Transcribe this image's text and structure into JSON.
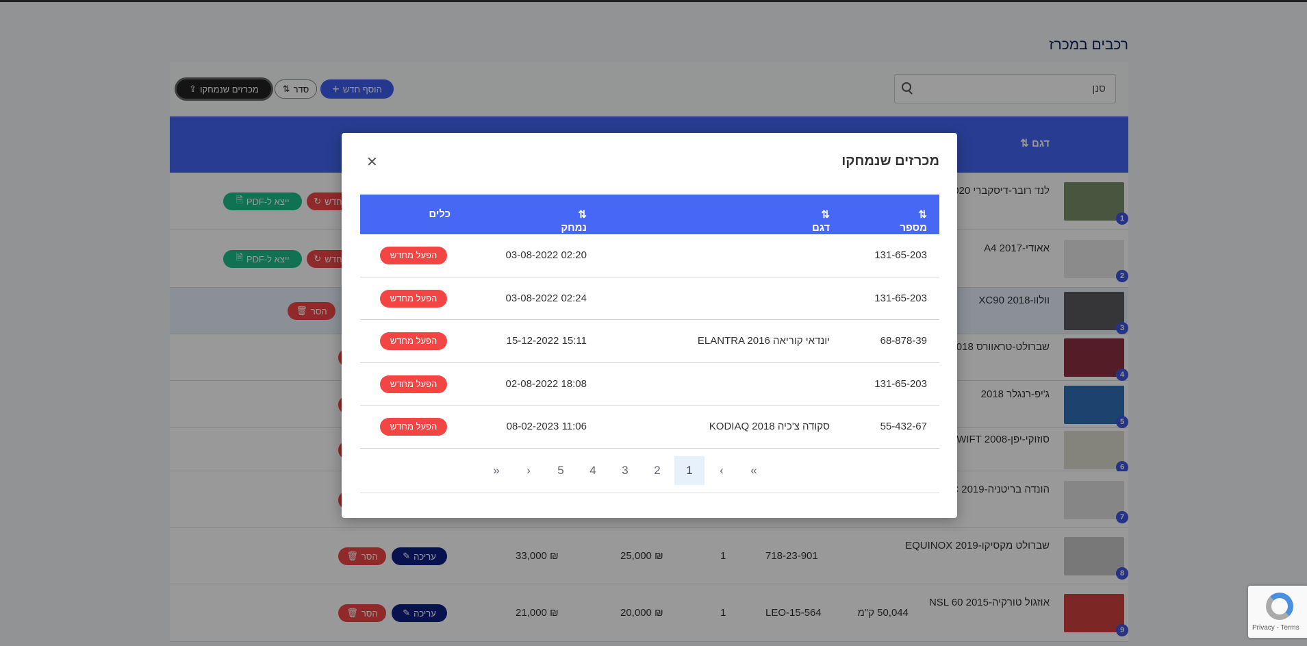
{
  "page": {
    "title": "רכבים במכרז"
  },
  "toolbar": {
    "search_placeholder": "סנן",
    "deleted_label": "מכרזים שנמחקו",
    "sort_label": "סדר",
    "add_label": "הוסף חדש"
  },
  "table": {
    "header_model": "דגם",
    "rows": [
      {
        "num": "1",
        "model": "לנד רובר-דיסקברי 2020",
        "pdf": "ייצא ל-PDF",
        "reset": "הפעל מחדש",
        "thumb": "#7a8f6a"
      },
      {
        "num": "2",
        "model": "אאודי-A4 2017",
        "pdf": "ייצא ל-PDF",
        "reset": "הפעל מחדש",
        "thumb": "#e8e8e8"
      },
      {
        "num": "3",
        "model": "וולוו-XC90 2018",
        "remove": "הסר",
        "thumb": "#5a5a60"
      },
      {
        "num": "4",
        "model": "שברולט-טראוורס 2018",
        "thumb": "#8a3040"
      },
      {
        "num": "5",
        "model": "ג'יפ-רנגלר 2018",
        "thumb": "#2f6fb8"
      },
      {
        "num": "6",
        "model": "סוזוקי-יפן-SWIFT 2008",
        "thumb": "#dcdcd0"
      },
      {
        "num": "7",
        "model": "הונדה בריטניה-CIVIC 2019",
        "thumb": "#e0e0e0"
      },
      {
        "num": "8",
        "model": "שברולט מקסיקו-EQUINOX 2019",
        "plate": "718-23-901",
        "count": "1",
        "price1": "₪ 25,000",
        "price2": "₪ 33,000",
        "edit": "עריכה",
        "remove": "הסר",
        "thumb": "#c8c8c8"
      },
      {
        "num": "9",
        "model": "אוזגול טורקיה-NSL 60 2015",
        "km": "50,044 ק\"מ",
        "plate": "LEO-15-564",
        "count": "1",
        "price1": "₪ 20,000",
        "price2": "₪ 21,000",
        "edit": "עריכה",
        "remove": "הסר",
        "thumb": "#d04040"
      }
    ]
  },
  "modal": {
    "title": "מכרזים שנמחקו",
    "close_icon": "close-icon",
    "columns": [
      "מספר רכב",
      "דגם",
      "נמחק",
      "כלים"
    ],
    "rows": [
      {
        "plate": "131-65-203",
        "model": "",
        "deleted": "02:20 03-08-2022",
        "action": "הפעל מחדש"
      },
      {
        "plate": "131-65-203",
        "model": "",
        "deleted": "02:24 03-08-2022",
        "action": "הפעל מחדש"
      },
      {
        "plate": "68-878-39",
        "model": "יונדאי קוריאה ELANTRA 2016",
        "deleted": "15:11 15-12-2022",
        "action": "הפעל מחדש"
      },
      {
        "plate": "131-65-203",
        "model": "",
        "deleted": "18:08 02-08-2022",
        "action": "הפעל מחדש"
      },
      {
        "plate": "55-432-67",
        "model": "סקודה צ'כיה KODIAQ 2018",
        "deleted": "11:06 08-02-2023",
        "action": "הפעל מחדש"
      }
    ],
    "pagination": {
      "first": "«",
      "prev": "‹",
      "pages": [
        "1",
        "2",
        "3",
        "4",
        "5"
      ],
      "active": "1",
      "next": "›",
      "last": "»"
    }
  },
  "recaptcha": {
    "text": "Privacy - Terms"
  },
  "colors": {
    "accent": "#4466f2",
    "danger": "#f14646",
    "success": "#1dbf8a",
    "navy": "#0e1f84"
  }
}
